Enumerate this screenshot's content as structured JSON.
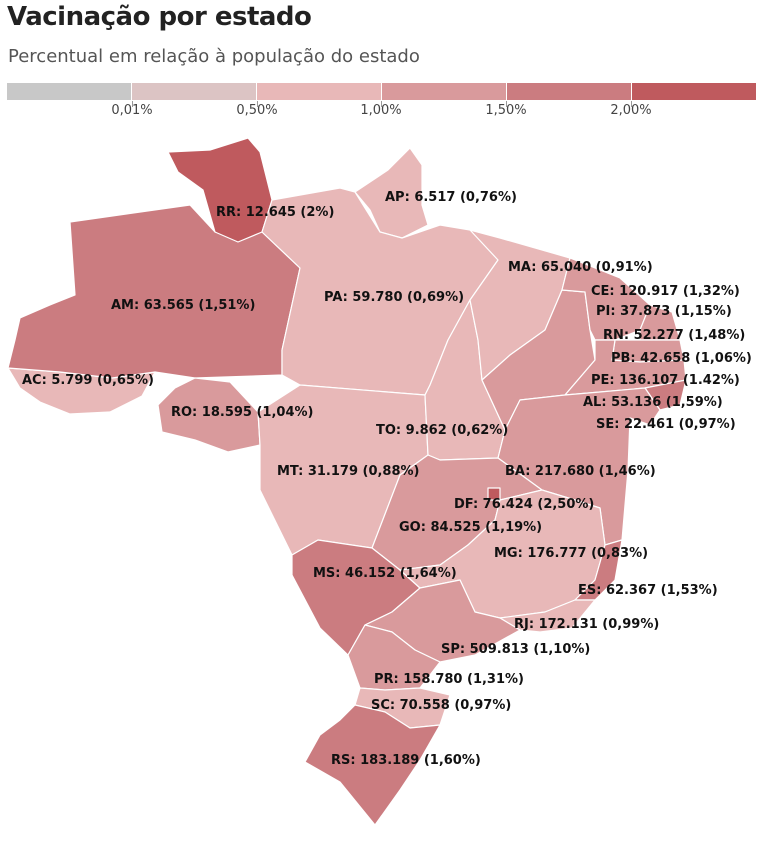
{
  "title": "Vacinação por estado",
  "subtitle": "Percentual em relação à população do estado",
  "legend": {
    "colors": [
      "#c8c8c8",
      "#dcc4c4",
      "#e8b8b8",
      "#d99a9c",
      "#cb7c80",
      "#bf5a5e"
    ],
    "ticks": [
      "0,01%",
      "0,50%",
      "1,00%",
      "1,50%",
      "2,00%"
    ]
  },
  "states": {
    "RR": {
      "label": "RR: 12.645 (2%)",
      "doses": 12645,
      "pct": 2.0
    },
    "AP": {
      "label": "AP: 6.517 (0,76%)",
      "doses": 6517,
      "pct": 0.76
    },
    "AM": {
      "label": "AM: 63.565 (1,51%)",
      "doses": 63565,
      "pct": 1.51
    },
    "PA": {
      "label": "PA: 59.780 (0,69%)",
      "doses": 59780,
      "pct": 0.69
    },
    "MA": {
      "label": "MA: 65.040 (0,91%)",
      "doses": 65040,
      "pct": 0.91
    },
    "CE": {
      "label": "CE: 120.917 (1,32%)",
      "doses": 120917,
      "pct": 1.32
    },
    "PI": {
      "label": "PI: 37.873 (1,15%)",
      "doses": 37873,
      "pct": 1.15
    },
    "RN": {
      "label": "RN: 52.277 (1,48%)",
      "doses": 52277,
      "pct": 1.48
    },
    "PB": {
      "label": "PB: 42.658 (1,06%)",
      "doses": 42658,
      "pct": 1.06
    },
    "PE": {
      "label": "PE: 136.107 (1.42%)",
      "doses": 136107,
      "pct": 1.42
    },
    "AL": {
      "label": "AL: 53.136 (1,59%)",
      "doses": 53136,
      "pct": 1.59
    },
    "SE": {
      "label": "SE: 22.461 (0,97%)",
      "doses": 22461,
      "pct": 0.97
    },
    "AC": {
      "label": "AC: 5.799 (0,65%)",
      "doses": 5799,
      "pct": 0.65
    },
    "RO": {
      "label": "RO: 18.595 (1,04%)",
      "doses": 18595,
      "pct": 1.04
    },
    "TO": {
      "label": "TO: 9.862 (0,62%)",
      "doses": 9862,
      "pct": 0.62
    },
    "MT": {
      "label": "MT: 31.179 (0,88%)",
      "doses": 31179,
      "pct": 0.88
    },
    "BA": {
      "label": "BA: 217.680 (1,46%)",
      "doses": 217680,
      "pct": 1.46
    },
    "DF": {
      "label": "DF: 76.424 (2,50%)",
      "doses": 76424,
      "pct": 2.5
    },
    "GO": {
      "label": "GO: 84.525 (1,19%)",
      "doses": 84525,
      "pct": 1.19
    },
    "MG": {
      "label": "MG: 176.777 (0,83%)",
      "doses": 176777,
      "pct": 0.83
    },
    "MS": {
      "label": "MS: 46.152 (1,64%)",
      "doses": 46152,
      "pct": 1.64
    },
    "ES": {
      "label": "ES: 62.367 (1,53%)",
      "doses": 62367,
      "pct": 1.53
    },
    "RJ": {
      "label": "RJ: 172.131 (0,99%)",
      "doses": 172131,
      "pct": 0.99
    },
    "SP": {
      "label": "SP: 509.813 (1,10%)",
      "doses": 509813,
      "pct": 1.1
    },
    "PR": {
      "label": "PR: 158.780 (1,31%)",
      "doses": 158780,
      "pct": 1.31
    },
    "SC": {
      "label": "SC: 70.558 (0,97%)",
      "doses": 70558,
      "pct": 0.97
    },
    "RS": {
      "label": "RS: 183.189 (1,60%)",
      "doses": 183189,
      "pct": 1.6
    }
  }
}
